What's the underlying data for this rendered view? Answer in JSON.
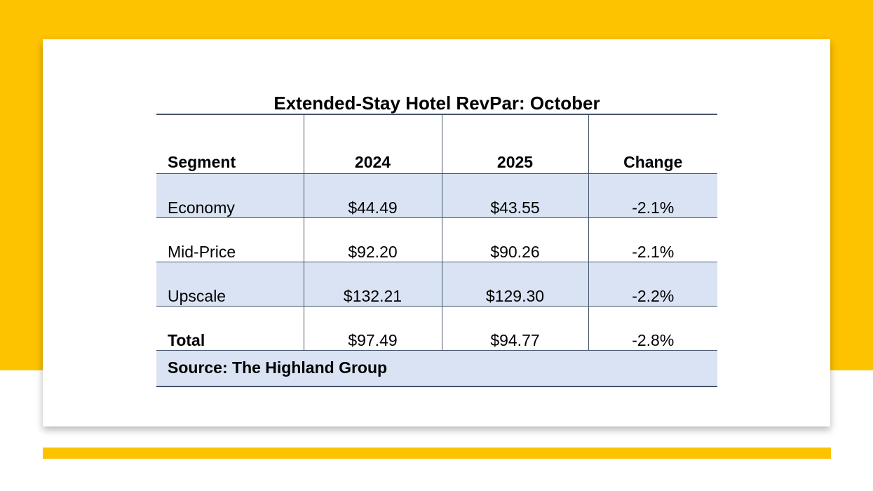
{
  "chart_data": {
    "type": "table",
    "title": "Extended-Stay Hotel RevPar: October",
    "columns": [
      "Segment",
      "2024",
      "2025",
      "Change"
    ],
    "rows": [
      {
        "segment": "Economy",
        "y2024": "$44.49",
        "y2025": "$43.55",
        "change": "-2.1%"
      },
      {
        "segment": "Mid-Price",
        "y2024": "$92.20",
        "y2025": "$90.26",
        "change": "-2.1%"
      },
      {
        "segment": "Upscale",
        "y2024": "$132.21",
        "y2025": "$129.30",
        "change": "-2.2%"
      },
      {
        "segment": "Total",
        "y2024": "$97.49",
        "y2025": "$94.77",
        "change": "-2.8%"
      }
    ],
    "source": "Source: The Highland Group"
  },
  "colors": {
    "background_accent": "#fdc200",
    "row_shading": "#dae3f3",
    "rule_lines": "#44546a"
  }
}
